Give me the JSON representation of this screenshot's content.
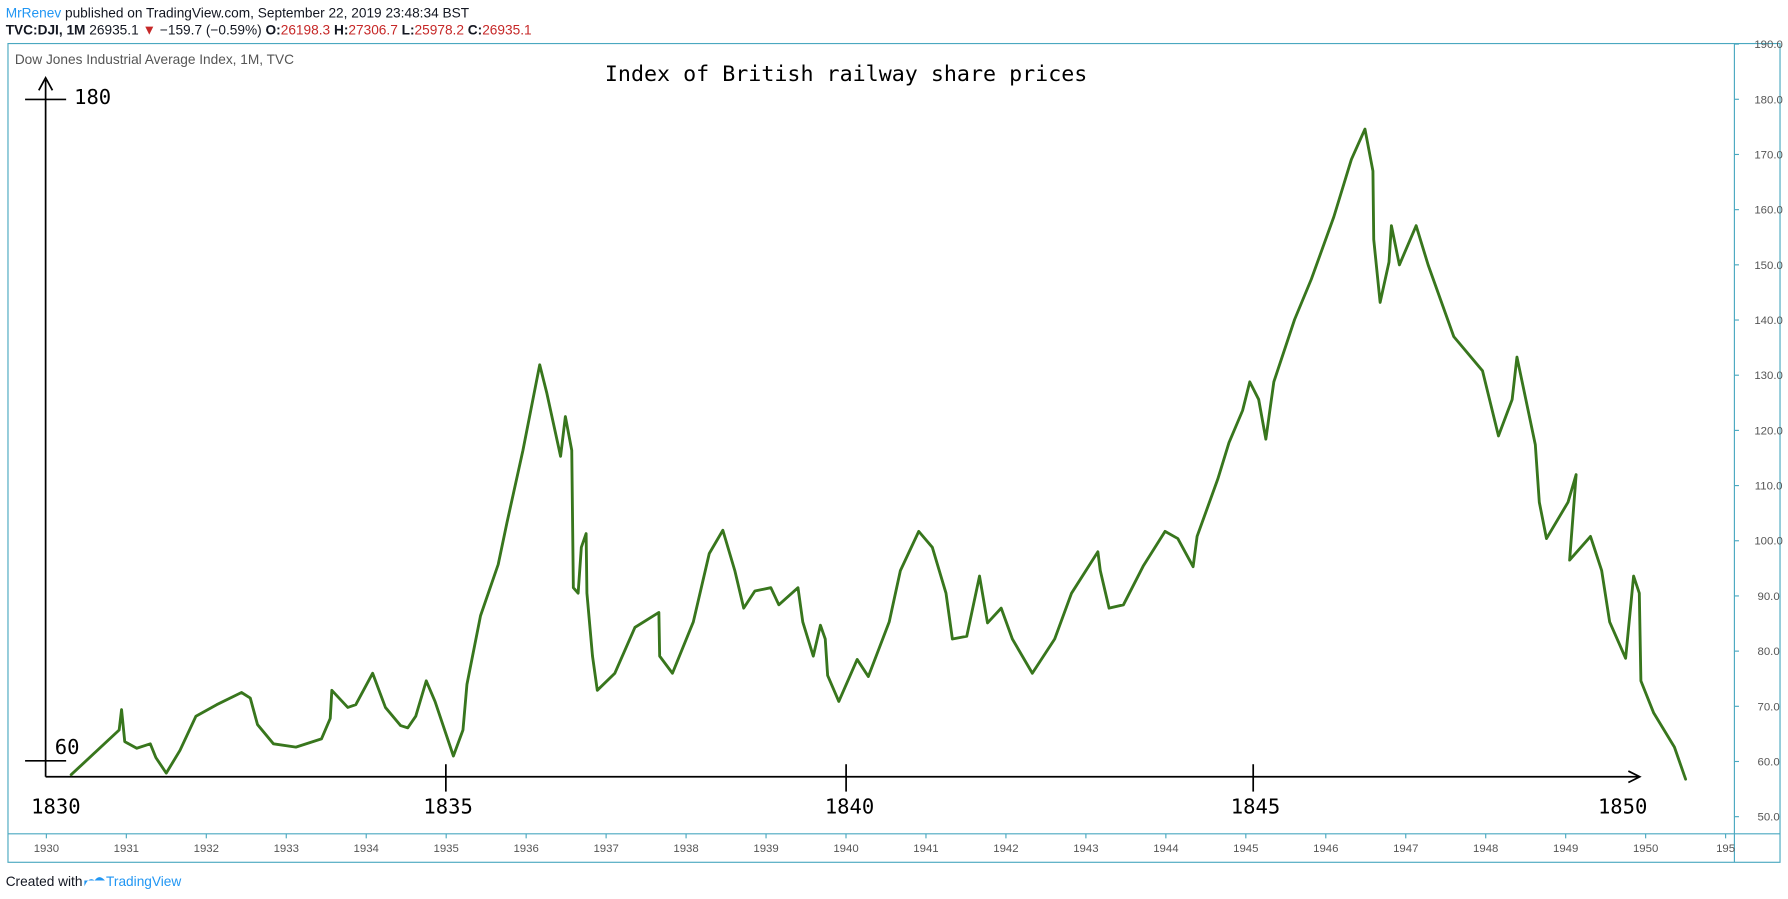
{
  "header": {
    "author": "MrRenev",
    "published": "published on TradingView.com, September 22, 2019 23:48:34 BST",
    "symbol": "TVC:DJI, 1M",
    "price": "26935.1",
    "change": "−159.7 (−0.59%)",
    "open_label": "O:",
    "open": "26198.3",
    "high_label": "H:",
    "high": "27306.7",
    "low_label": "L:",
    "low": "25978.2",
    "close_label": "C:",
    "close": "26935.1"
  },
  "footer": {
    "created": "Created with",
    "brand": "TradingView"
  },
  "chart_data": {
    "type": "line",
    "title": "Index of British railway share prices",
    "annotation_y_labels": [
      "180",
      "60"
    ],
    "annotation_x_labels": [
      "1830",
      "1835",
      "1840",
      "1845",
      "1850"
    ],
    "x": [
      1930.31,
      1930.91,
      1930.94,
      1930.98,
      1931.13,
      1931.3,
      1931.37,
      1931.5,
      1931.67,
      1931.87,
      1932.13,
      1932.44,
      1932.55,
      1932.64,
      1932.84,
      1933.12,
      1933.44,
      1933.55,
      1933.57,
      1933.77,
      1933.87,
      1934.08,
      1934.24,
      1934.43,
      1934.52,
      1934.62,
      1934.75,
      1934.86,
      1935.09,
      1935.21,
      1935.26,
      1935.43,
      1935.65,
      1935.76,
      1935.96,
      1936.17,
      1936.26,
      1936.43,
      1936.49,
      1936.57,
      1936.59,
      1936.65,
      1936.69,
      1936.75,
      1936.76,
      1936.83,
      1936.89,
      1937.11,
      1937.36,
      1937.66,
      1937.67,
      1937.83,
      1938.09,
      1938.29,
      1938.46,
      1938.61,
      1938.72,
      1938.86,
      1939.06,
      1939.16,
      1939.4,
      1939.46,
      1939.59,
      1939.68,
      1939.74,
      1939.77,
      1939.91,
      1940.14,
      1940.28,
      1940.54,
      1940.68,
      1940.91,
      1941.08,
      1941.25,
      1941.33,
      1941.51,
      1941.67,
      1941.77,
      1941.94,
      1942.08,
      1942.33,
      1942.61,
      1942.82,
      1943.15,
      1943.18,
      1943.29,
      1943.47,
      1943.72,
      1943.99,
      1944.15,
      1944.34,
      1944.39,
      1944.65,
      1944.79,
      1944.96,
      1945.05,
      1945.16,
      1945.25,
      1945.35,
      1945.61,
      1945.82,
      1946.1,
      1946.32,
      1946.49,
      1946.59,
      1946.6,
      1946.68,
      1946.79,
      1946.82,
      1946.92,
      1947.13,
      1947.28,
      1947.6,
      1947.96,
      1948.16,
      1948.33,
      1948.39,
      1948.62,
      1948.67,
      1948.76,
      1949.03,
      1949.13,
      1949.05,
      1949.31,
      1949.45,
      1949.55,
      1949.75,
      1949.85,
      1949.92,
      1949.94,
      1950.1,
      1950.36,
      1950.5
    ],
    "series": [
      {
        "name": "Dow Jones Industrial Average Index, 1M, TVC",
        "color": "#38761d",
        "values": [
          57.6,
          65.7,
          69.4,
          63.6,
          62.4,
          63.2,
          60.7,
          57.9,
          62.0,
          68.2,
          70.3,
          72.5,
          71.5,
          66.7,
          63.2,
          62.6,
          64.1,
          67.8,
          72.9,
          69.8,
          70.3,
          76.0,
          69.8,
          66.5,
          66.1,
          68.2,
          74.6,
          70.9,
          61.0,
          65.7,
          74.0,
          86.4,
          95.7,
          103.3,
          116.4,
          131.9,
          126.7,
          115.3,
          122.5,
          116.4,
          91.5,
          90.5,
          98.8,
          101.3,
          90.5,
          79.1,
          72.9,
          76.0,
          84.3,
          87.0,
          79.1,
          76.0,
          85.3,
          97.7,
          101.9,
          94.6,
          87.8,
          90.9,
          91.5,
          88.4,
          91.5,
          85.3,
          79.1,
          84.7,
          82.2,
          75.6,
          70.9,
          78.5,
          75.4,
          85.3,
          94.6,
          101.7,
          98.8,
          90.5,
          82.2,
          82.7,
          93.6,
          85.1,
          87.8,
          82.2,
          76.0,
          82.2,
          90.5,
          98.0,
          94.6,
          87.8,
          88.4,
          95.5,
          101.7,
          100.4,
          95.3,
          100.8,
          111.2,
          117.8,
          123.6,
          128.8,
          125.6,
          118.4,
          128.8,
          140.1,
          147.4,
          158.7,
          169.1,
          174.6,
          167.0,
          154.6,
          143.2,
          150.5,
          157.1,
          150.0,
          157.1,
          150.0,
          137.0,
          130.8,
          119.0,
          125.6,
          133.3,
          117.4,
          107.0,
          100.4,
          107.0,
          112.0,
          96.5,
          100.8,
          94.6,
          85.3,
          78.7,
          93.6,
          90.5,
          74.6,
          68.8,
          62.6,
          56.8
        ]
      }
    ],
    "xlim": [
      1929.52,
      1951.11
    ],
    "ylim": [
      46.9,
      190.1
    ],
    "xticks": [
      1930,
      1931,
      1932,
      1933,
      1934,
      1935,
      1936,
      1937,
      1938,
      1939,
      1940,
      1941,
      1942,
      1943,
      1944,
      1945,
      1946,
      1947,
      1948,
      1949,
      1950,
      {
        "value": 1951,
        "label": "195"
      }
    ],
    "yticks": [
      {
        "value": 50,
        "label": "50.0"
      },
      {
        "value": 60,
        "label": "60.0"
      },
      {
        "value": 70,
        "label": "70.0"
      },
      {
        "value": 80,
        "label": "80.0"
      },
      {
        "value": 90,
        "label": "90.0"
      },
      {
        "value": 100,
        "label": "100.0"
      },
      {
        "value": 110,
        "label": "110.0"
      },
      {
        "value": 120,
        "label": "120.0"
      },
      {
        "value": 130,
        "label": "130.0"
      },
      {
        "value": 140,
        "label": "140.0"
      },
      {
        "value": 150,
        "label": "150.0"
      },
      {
        "value": 160,
        "label": "160.0"
      },
      {
        "value": 170,
        "label": "170.0"
      },
      {
        "value": 180,
        "label": "180.0"
      },
      {
        "value": 190,
        "label": "190.0"
      }
    ]
  }
}
